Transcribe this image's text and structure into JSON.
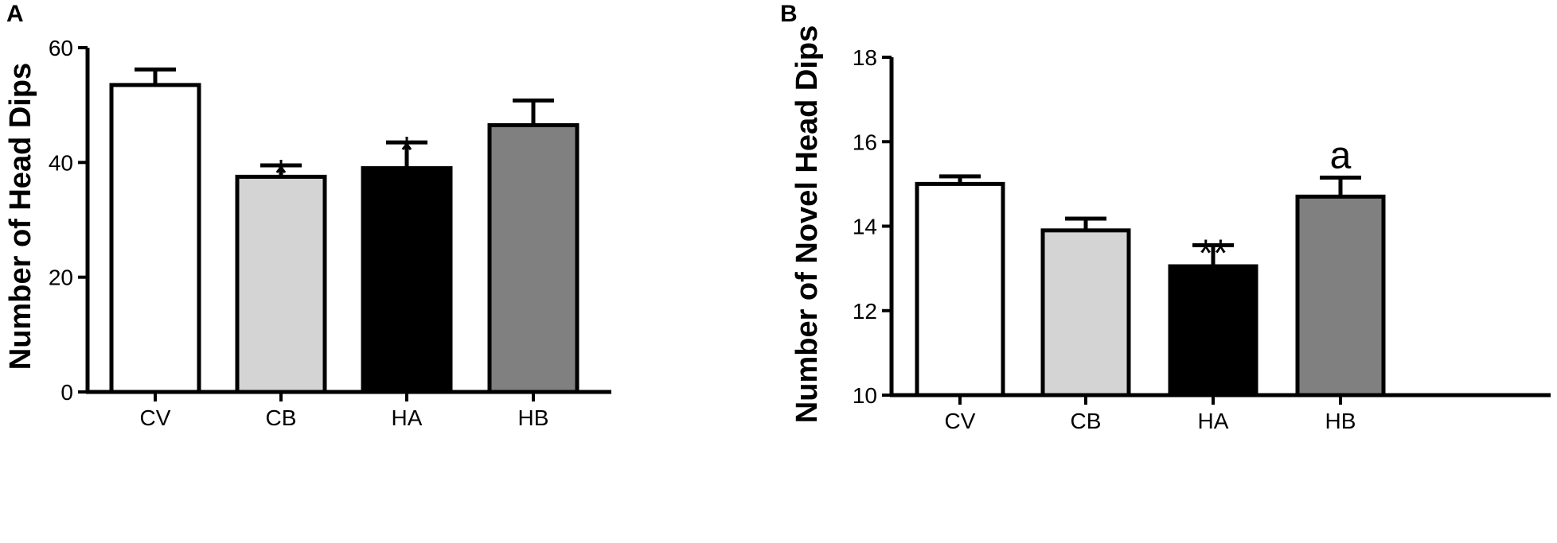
{
  "chart_data": [
    {
      "panel": "A",
      "type": "bar",
      "title": "",
      "xlabel": "",
      "ylabel": "Number of Head Dips",
      "ylim": [
        0,
        60
      ],
      "yticks": [
        "0",
        "20",
        "40",
        "60"
      ],
      "categories": [
        "CV",
        "CB",
        "HA",
        "HB"
      ],
      "values": [
        53.5,
        37.5,
        39,
        46.5
      ],
      "errors": [
        2.7,
        2,
        4.5,
        4.3
      ],
      "bar_colors": [
        "#ffffff",
        "#d4d4d4",
        "#000000",
        "#808080"
      ],
      "annotations": [
        "",
        "*",
        "*",
        ""
      ],
      "grid": false
    },
    {
      "panel": "B",
      "type": "bar",
      "title": "",
      "xlabel": "",
      "ylabel": "Number of Novel Head Dips",
      "ylim": [
        10,
        18
      ],
      "yticks": [
        "10",
        "12",
        "14",
        "16",
        "18"
      ],
      "categories": [
        "CV",
        "CB",
        "HA",
        "HB"
      ],
      "values": [
        15,
        13.9,
        13.05,
        14.7
      ],
      "errors": [
        0.18,
        0.28,
        0.5,
        0.45
      ],
      "bar_colors": [
        "#ffffff",
        "#d4d4d4",
        "#000000",
        "#808080"
      ],
      "annotations": [
        "",
        "",
        "**",
        "a"
      ],
      "grid": false
    }
  ]
}
